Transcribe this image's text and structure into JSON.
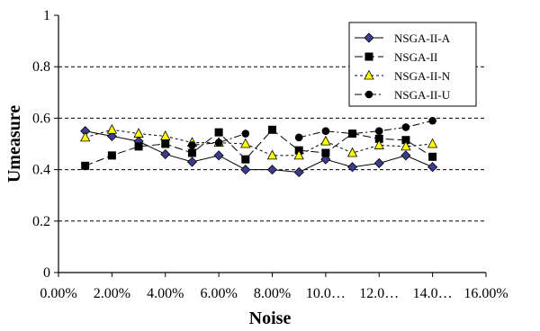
{
  "chart_data": {
    "type": "line",
    "xlabel": "Noise",
    "ylabel": "Umeasure",
    "x_ticks": [
      "0.00%",
      "2.00%",
      "4.00%",
      "6.00%",
      "8.00%",
      "10.0…",
      "12.0…",
      "14.0…",
      "16.00%"
    ],
    "y_ticks": [
      "0",
      "0.2",
      "0.4",
      "0.6",
      "0.8",
      "1"
    ],
    "xlim": [
      0,
      0.16
    ],
    "ylim": [
      0,
      1
    ],
    "x": [
      0.01,
      0.02,
      0.03,
      0.04,
      0.05,
      0.06,
      0.07,
      0.08,
      0.09,
      0.1,
      0.11,
      0.12,
      0.13,
      0.14
    ],
    "grid": "horizontal dashed",
    "legend_position": "top-right",
    "series": [
      {
        "name": "NSGA-II-A",
        "marker": "diamond",
        "color": "#3c3c8c",
        "dash": "solid",
        "values": [
          0.55,
          0.53,
          0.51,
          0.46,
          0.43,
          0.455,
          0.4,
          0.4,
          0.39,
          0.44,
          0.41,
          0.425,
          0.455,
          0.41
        ]
      },
      {
        "name": "NSGA-II",
        "marker": "square",
        "color": "#000000",
        "dash": "long-dash",
        "values": [
          0.415,
          0.455,
          0.49,
          0.5,
          0.465,
          0.545,
          0.44,
          0.555,
          0.475,
          0.465,
          0.54,
          0.52,
          0.515,
          0.45
        ]
      },
      {
        "name": "NSGA-II-N",
        "marker": "triangle",
        "color": "#ffff00",
        "dash": "short-dash",
        "values": [
          0.525,
          0.555,
          0.54,
          0.53,
          0.505,
          0.505,
          0.5,
          0.455,
          0.455,
          0.51,
          0.465,
          0.495,
          0.49,
          0.5
        ]
      },
      {
        "name": "NSGA-II-U",
        "marker": "circle",
        "color": "#000000",
        "dash": "dash-dot",
        "values": [
          null,
          null,
          null,
          null,
          0.495,
          0.505,
          0.54,
          null,
          0.525,
          0.55,
          0.54,
          0.55,
          0.565,
          0.59
        ]
      }
    ]
  }
}
